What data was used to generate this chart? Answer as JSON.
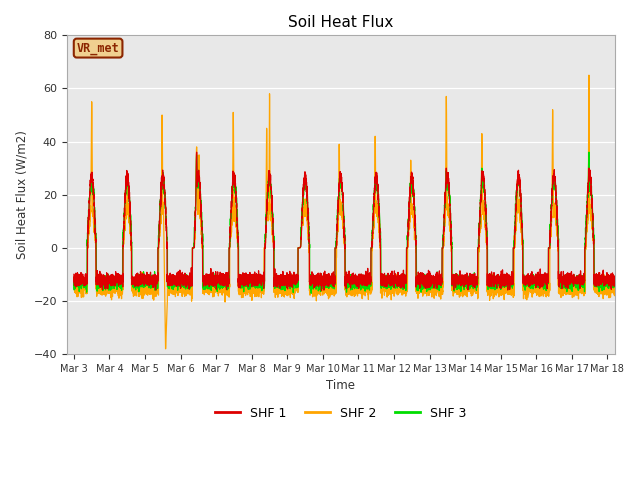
{
  "title": "Soil Heat Flux",
  "ylabel": "Soil Heat Flux (W/m2)",
  "xlabel": "Time",
  "ylim": [
    -40,
    80
  ],
  "yticks": [
    -40,
    -20,
    0,
    20,
    40,
    60,
    80
  ],
  "outer_bg": "#ffffff",
  "plot_bg": "#e8e8e8",
  "shf1_color": "#dd0000",
  "shf2_color": "#ffa500",
  "shf3_color": "#00dd00",
  "legend_label1": "SHF 1",
  "legend_label2": "SHF 2",
  "legend_label3": "SHF 3",
  "annotation_text": "VR_met",
  "annotation_fg": "#8b2500",
  "annotation_bg": "#f0d090",
  "annotation_edge": "#8b2500",
  "start_day": 3,
  "end_day": 18
}
